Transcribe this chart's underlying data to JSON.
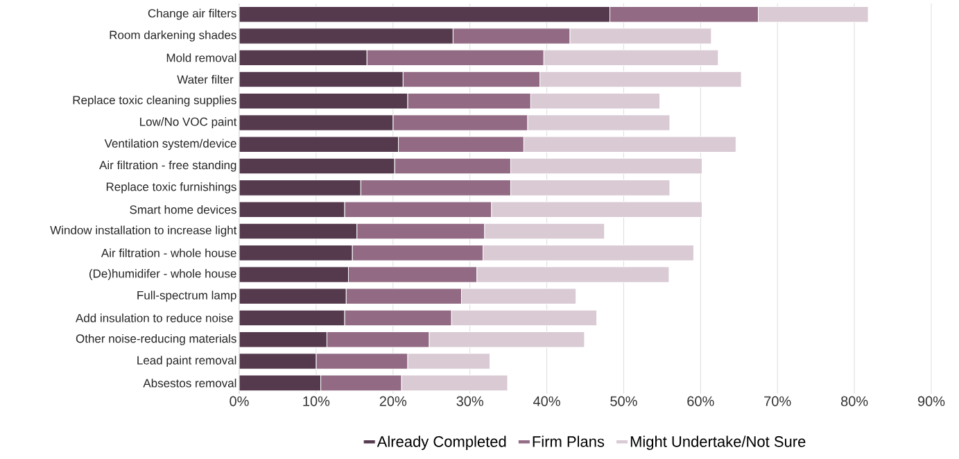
{
  "chart_data": {
    "type": "bar",
    "orientation": "horizontal",
    "stacked": true,
    "categories": [
      "Change air filters",
      "Room darkening shades",
      "Mold removal",
      "Water filter ",
      "Replace toxic cleaning supplies",
      "Low/No VOC paint",
      "Ventilation system/device",
      "Air filtration - free standing",
      "Replace toxic furnishings",
      "Smart home devices",
      "Window installation to increase light",
      "Air filtration - whole house",
      "(De)humidifer - whole house",
      "Full-spectrum lamp",
      "Add insulation to reduce noise ",
      "Other noise-reducing materials",
      "Lead paint removal",
      "Absestos removal"
    ],
    "series": [
      {
        "name": "Already Completed",
        "color": "#553a4e",
        "values": [
          48.2,
          27.8,
          16.6,
          21.3,
          21.9,
          20.0,
          20.7,
          20.2,
          15.8,
          13.7,
          15.3,
          14.7,
          14.2,
          13.9,
          13.7,
          11.4,
          10.0,
          10.6
        ]
      },
      {
        "name": "Firm Plans",
        "color": "#926a84",
        "values": [
          19.3,
          15.2,
          23.0,
          17.8,
          16.0,
          17.5,
          16.3,
          15.1,
          19.5,
          19.1,
          16.6,
          17.0,
          16.7,
          15.0,
          13.9,
          13.3,
          11.9,
          10.5
        ]
      },
      {
        "name": "Might Undertake/Not Sure",
        "color": "#d9cad4",
        "values": [
          14.3,
          18.4,
          22.7,
          26.2,
          16.8,
          18.5,
          27.6,
          24.9,
          20.7,
          27.4,
          15.6,
          27.4,
          25.0,
          14.9,
          18.9,
          20.2,
          10.7,
          13.8
        ]
      }
    ],
    "xlim": [
      0,
      90
    ],
    "xticks": [
      {
        "value": 0,
        "label": "0%"
      },
      {
        "value": 10,
        "label": "10%"
      },
      {
        "value": 20,
        "label": "20%"
      },
      {
        "value": 30,
        "label": "30%"
      },
      {
        "value": 40,
        "label": "40%"
      },
      {
        "value": 50,
        "label": "50%"
      },
      {
        "value": 60,
        "label": "60%"
      },
      {
        "value": 70,
        "label": "70%"
      },
      {
        "value": 80,
        "label": "80%"
      },
      {
        "value": 90,
        "label": "90%"
      }
    ],
    "grid": "x",
    "legend": "bottom"
  }
}
